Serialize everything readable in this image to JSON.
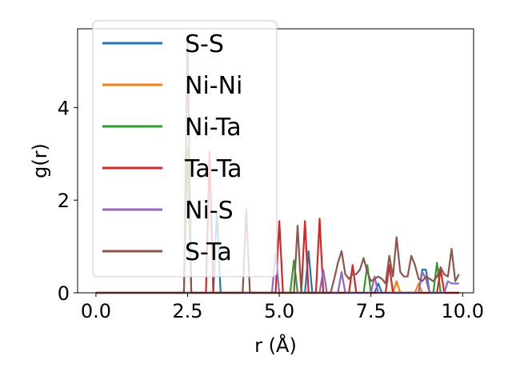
{
  "chart_data": {
    "type": "line",
    "xlabel": "r (Å)",
    "ylabel": "g(r)",
    "xlim": [
      -0.5,
      10.3
    ],
    "ylim": [
      0,
      5.7
    ],
    "xticks": [
      "0.0",
      "2.5",
      "5.0",
      "7.5",
      "10.0"
    ],
    "xtick_values": [
      0,
      2.5,
      5,
      7.5,
      10
    ],
    "yticks": [
      "0",
      "2",
      "4"
    ],
    "ytick_values": [
      0,
      2,
      4
    ],
    "grid": false,
    "legend_position": "upper-left",
    "x": [
      0.0,
      0.1,
      0.2,
      0.3,
      0.4,
      0.5,
      0.6,
      0.7,
      0.8,
      0.9,
      1.0,
      1.1,
      1.2,
      1.3,
      1.4,
      1.5,
      1.6,
      1.7,
      1.8,
      1.9,
      2.0,
      2.1,
      2.2,
      2.3,
      2.4,
      2.5,
      2.6,
      2.7,
      2.8,
      2.9,
      3.0,
      3.1,
      3.2,
      3.3,
      3.4,
      3.5,
      3.6,
      3.7,
      3.8,
      3.9,
      4.0,
      4.1,
      4.2,
      4.3,
      4.4,
      4.5,
      4.6,
      4.7,
      4.8,
      4.9,
      5.0,
      5.1,
      5.2,
      5.3,
      5.4,
      5.5,
      5.6,
      5.7,
      5.8,
      5.9,
      6.0,
      6.1,
      6.2,
      6.3,
      6.4,
      6.5,
      6.6,
      6.7,
      6.8,
      6.9,
      7.0,
      7.1,
      7.2,
      7.3,
      7.4,
      7.5,
      7.6,
      7.7,
      7.8,
      7.9,
      8.0,
      8.1,
      8.2,
      8.3,
      8.4,
      8.5,
      8.6,
      8.7,
      8.8,
      8.9,
      9.0,
      9.1,
      9.2,
      9.3,
      9.4,
      9.5,
      9.6,
      9.7,
      9.8,
      9.9
    ],
    "series": [
      {
        "name": "S-S",
        "color": "#1f77b4",
        "values": [
          0,
          0,
          0,
          0,
          0,
          0,
          0,
          0,
          0,
          0,
          0,
          0,
          0,
          0,
          0,
          0,
          0,
          0,
          0,
          0,
          0,
          0,
          0,
          0,
          0,
          0,
          0,
          0,
          0,
          0,
          0,
          0,
          0,
          1.75,
          0,
          0,
          0,
          0,
          0,
          0,
          0,
          0,
          0,
          0,
          0,
          0,
          0,
          0,
          0,
          0,
          0,
          0,
          0,
          0,
          0,
          0,
          0,
          0,
          0.9,
          0,
          0,
          0,
          0,
          0,
          0,
          0,
          0,
          0,
          0,
          0,
          0,
          0,
          0,
          0,
          0,
          0,
          0,
          0.2,
          0,
          0,
          0,
          0,
          0,
          0,
          0,
          0,
          0,
          0,
          0,
          0.5,
          0.5,
          0,
          0,
          0,
          0,
          0,
          0,
          0,
          0,
          0
        ]
      },
      {
        "name": "Ni-Ni",
        "color": "#ff7f0e",
        "values": [
          0,
          0,
          0,
          0,
          0,
          0,
          0,
          0,
          0,
          0,
          0,
          0,
          0,
          0,
          0,
          0,
          0,
          0,
          0,
          0,
          0,
          0,
          0,
          0,
          0,
          0,
          0,
          0,
          0,
          0,
          0,
          0,
          0,
          0,
          0,
          0,
          0,
          0,
          0,
          0,
          0,
          0,
          0,
          0,
          0,
          0,
          0,
          0,
          0,
          0,
          0,
          0,
          0,
          0,
          0,
          0,
          0,
          0,
          0,
          0,
          0,
          0,
          0,
          0,
          0,
          0,
          0,
          0,
          0,
          0,
          0,
          0,
          0,
          0,
          0,
          0,
          0,
          0,
          0,
          0,
          0,
          0,
          0.25,
          0,
          0,
          0,
          0,
          0,
          0.2,
          0,
          0,
          0,
          0,
          0,
          0,
          0,
          0,
          0,
          0,
          0
        ]
      },
      {
        "name": "Ni-Ta",
        "color": "#2ca02c",
        "values": [
          0,
          0,
          0,
          0,
          0,
          0,
          0,
          0,
          0,
          0,
          0,
          0,
          0,
          0,
          0,
          0,
          0,
          0,
          0,
          0,
          0,
          0,
          0,
          0,
          0,
          3.1,
          0,
          0,
          0,
          0,
          0,
          0,
          0,
          0,
          0,
          0,
          0,
          0,
          0,
          0,
          0,
          0,
          0,
          0,
          0,
          0,
          0,
          0,
          0,
          0,
          0,
          0,
          0,
          0,
          0.7,
          0,
          0,
          0,
          0,
          0,
          0,
          0,
          0,
          0,
          0,
          0,
          0,
          0,
          0,
          0,
          0,
          0,
          0,
          0,
          0.6,
          0,
          0,
          0,
          0,
          0,
          0,
          0,
          0,
          0,
          0,
          0,
          0,
          0,
          0,
          0,
          0,
          0,
          0,
          0.65,
          0,
          0,
          0,
          0,
          0,
          0
        ]
      },
      {
        "name": "Ta-Ta",
        "color": "#d62728",
        "values": [
          0,
          0,
          0,
          0,
          0,
          0,
          0,
          0,
          0,
          0,
          0,
          0,
          0,
          0,
          0,
          0,
          0,
          0,
          0,
          0,
          0,
          0,
          0,
          0,
          0,
          0,
          0,
          0,
          0,
          0,
          0,
          3.05,
          0,
          0,
          0,
          0,
          0,
          0,
          0,
          0,
          0,
          0,
          0,
          0,
          0,
          0,
          0,
          0,
          0,
          0,
          1.55,
          0,
          0,
          0,
          0,
          0,
          0,
          1.55,
          0,
          0,
          0,
          1.6,
          0,
          0,
          0,
          0,
          0,
          0,
          0,
          0,
          0.6,
          0,
          0,
          0,
          0,
          0,
          0,
          0,
          0,
          0,
          0.6,
          0,
          0,
          0,
          0,
          0,
          0,
          0,
          0,
          0,
          0,
          0,
          0,
          0,
          0.5,
          0,
          0,
          0,
          0,
          0
        ]
      },
      {
        "name": "Ni-S",
        "color": "#9467bd",
        "values": [
          0,
          0,
          0,
          0,
          0,
          0,
          0,
          0,
          0,
          0,
          0,
          0,
          0,
          0,
          0,
          0,
          0,
          0,
          0,
          0,
          0,
          0,
          0,
          0,
          0,
          0,
          0,
          0,
          0,
          0,
          0,
          0,
          0,
          0,
          0,
          0,
          0,
          0,
          0,
          0,
          0,
          0,
          0,
          0,
          0,
          0,
          0,
          0,
          0,
          0.85,
          0,
          0,
          0,
          0,
          0,
          0,
          0,
          0,
          0,
          0,
          0,
          0,
          0.5,
          0,
          0,
          0,
          0,
          0.45,
          0,
          0,
          0,
          0,
          0,
          0,
          0,
          0,
          0.35,
          0,
          0,
          0,
          0,
          0,
          0,
          0,
          0,
          0,
          0,
          0,
          0,
          0.45,
          0.3,
          0,
          0,
          0,
          0,
          0,
          0.25,
          0.2,
          0.2,
          0.2
        ]
      },
      {
        "name": "S-Ta",
        "color": "#8c564b",
        "values": [
          0,
          0,
          0,
          0,
          0,
          0,
          0,
          0,
          0,
          0,
          0,
          0,
          0,
          0,
          0,
          0,
          0,
          0,
          0,
          0,
          0,
          0,
          0,
          0,
          0,
          5.5,
          0,
          0,
          0,
          0,
          0,
          0,
          0,
          0,
          0,
          0,
          0,
          0,
          0,
          0,
          0,
          1.8,
          0,
          0,
          0,
          0,
          0,
          0,
          0,
          0,
          0,
          0,
          0,
          0,
          0,
          1.45,
          0,
          0,
          0,
          0,
          0,
          0,
          0,
          0,
          0,
          0.3,
          0.65,
          0.9,
          0.4,
          0.3,
          0.4,
          0.4,
          0.5,
          0.75,
          0.45,
          0.25,
          0.3,
          0.35,
          0.3,
          0.2,
          0.8,
          0.35,
          1.2,
          0.45,
          0.35,
          0.35,
          0.8,
          0.6,
          0.3,
          0.25,
          0.35,
          0.3,
          0.25,
          0.35,
          0.55,
          0.4,
          0.35,
          0.95,
          0.25,
          0.4
        ]
      }
    ]
  }
}
